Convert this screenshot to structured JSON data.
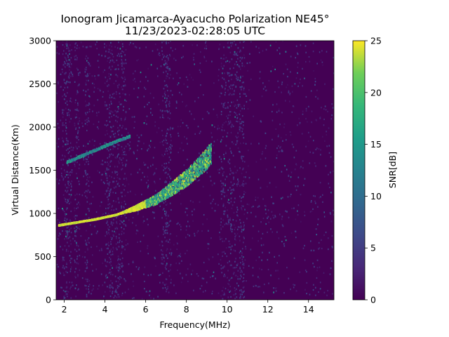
{
  "chart_data": {
    "type": "heatmap",
    "title": "Ionogram Jicamarca-Ayacucho Polarization NE45°",
    "subtitle": "11/23/2023-02:28:05 UTC",
    "xlabel": "Frequency(MHz)",
    "ylabel": "Virtual Distance(Km)",
    "colorbar_label": "SNR[dB]",
    "colormap": "viridis",
    "xlim": [
      1.6,
      15.25
    ],
    "ylim": [
      0,
      3000
    ],
    "clim": [
      0,
      25
    ],
    "x_ticks": [
      "2",
      "4",
      "6",
      "8",
      "10",
      "12",
      "14"
    ],
    "x_tick_values": [
      2,
      4,
      6,
      8,
      10,
      12,
      14
    ],
    "y_ticks": [
      "0",
      "500",
      "1000",
      "1500",
      "2000",
      "2500",
      "3000"
    ],
    "y_tick_values": [
      0,
      500,
      1000,
      1500,
      2000,
      2500,
      3000
    ],
    "colorbar_ticks": [
      "0",
      "5",
      "10",
      "15",
      "20",
      "25"
    ],
    "colorbar_tick_values": [
      0,
      5,
      10,
      15,
      20,
      25
    ],
    "background_snr_db": 1,
    "traces": [
      {
        "description_visible": false,
        "snr_db": 25,
        "points": [
          [
            1.7,
            850
          ],
          [
            2.5,
            880
          ],
          [
            3.5,
            920
          ],
          [
            4.5,
            970
          ],
          [
            5.5,
            1050
          ],
          [
            6.5,
            1150
          ],
          [
            7.3,
            1280
          ],
          [
            8.0,
            1400
          ],
          [
            8.7,
            1550
          ],
          [
            9.2,
            1680
          ]
        ]
      },
      {
        "description_visible": false,
        "snr_db": 15,
        "points": [
          [
            2.1,
            1580
          ],
          [
            2.8,
            1650
          ],
          [
            3.5,
            1720
          ],
          [
            4.3,
            1800
          ],
          [
            5.2,
            1880
          ]
        ]
      }
    ],
    "vertical_bands_mhz": [
      2.0,
      2.2,
      2.6,
      3.1,
      4.1,
      4.3,
      4.6,
      4.9,
      6.9,
      7.1,
      9.8,
      10.1,
      10.4,
      10.7
    ]
  }
}
